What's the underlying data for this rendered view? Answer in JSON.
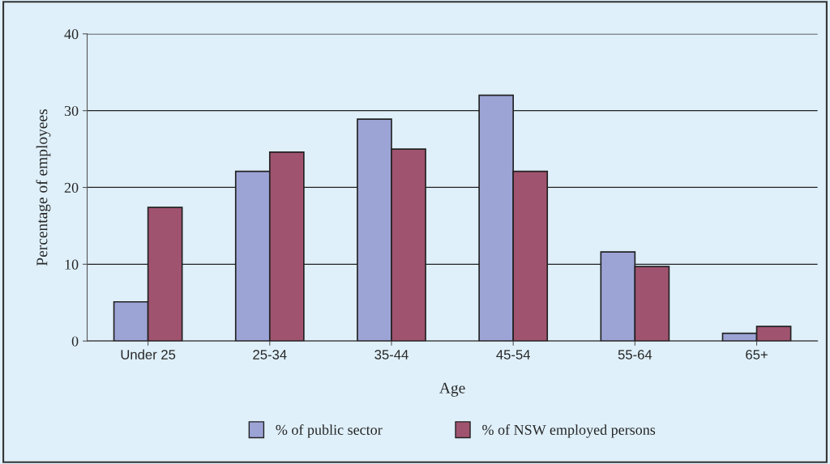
{
  "chart_data": {
    "type": "bar",
    "xlabel": "Age",
    "ylabel": "Percentage of employees",
    "categories": [
      "Under 25",
      "25-34",
      "35-44",
      "45-54",
      "55-64",
      "65+"
    ],
    "series": [
      {
        "name": "% of public sector",
        "color": "#9ca4d6",
        "values": [
          5.1,
          22.1,
          28.9,
          32.0,
          11.6,
          1.0
        ]
      },
      {
        "name": "% of NSW employed persons",
        "color": "#a0536f",
        "values": [
          17.4,
          24.6,
          25.0,
          22.1,
          9.7,
          1.9
        ]
      }
    ],
    "ylim": [
      0,
      40
    ],
    "yticks": [
      0,
      10,
      20,
      30,
      40
    ],
    "grid": "y",
    "legend": "bottom"
  }
}
